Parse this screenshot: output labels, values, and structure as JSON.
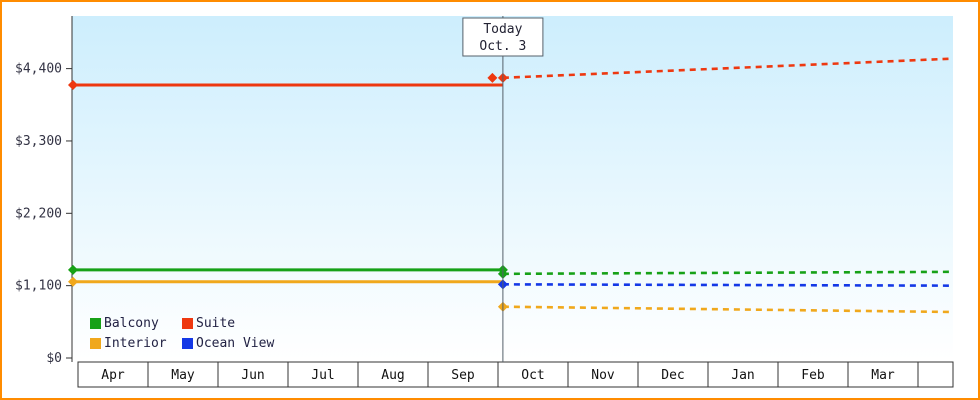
{
  "panel": {
    "border_color": "#ff8c00"
  },
  "chart_data": {
    "type": "line",
    "months": [
      "Apr",
      "May",
      "Jun",
      "Jul",
      "Aug",
      "Sep",
      "Oct",
      "Nov",
      "Dec",
      "Jan",
      "Feb",
      "Mar"
    ],
    "y_ticks": [
      {
        "value": 0,
        "label": "$0"
      },
      {
        "value": 1100,
        "label": "$1,100"
      },
      {
        "value": 2200,
        "label": "$2,200"
      },
      {
        "value": 3300,
        "label": "$3,300"
      },
      {
        "value": 4400,
        "label": "$4,400"
      }
    ],
    "ylim": [
      0,
      5200
    ],
    "grid": false,
    "legend_position": "bottom-left",
    "today": {
      "line1": "Today",
      "line2": "Oct. 3",
      "month_position": 6.07
    },
    "series": [
      {
        "name": "Balcony",
        "color": "#17a117",
        "solid": [
          [
            0,
            1340
          ],
          [
            6.07,
            1340
          ]
        ],
        "dashed": [
          [
            6.07,
            1280
          ],
          [
            12.45,
            1310
          ]
        ],
        "markers": [
          [
            0,
            1340
          ],
          [
            6.07,
            1340
          ],
          [
            6.07,
            1280
          ]
        ]
      },
      {
        "name": "Suite",
        "color": "#ee3810",
        "solid": [
          [
            0,
            4150
          ],
          [
            6.07,
            4150
          ]
        ],
        "dashed": [
          [
            6.07,
            4260
          ],
          [
            12.45,
            4550
          ]
        ],
        "markers": [
          [
            0,
            4150
          ],
          [
            5.92,
            4260
          ],
          [
            6.07,
            4260
          ]
        ]
      },
      {
        "name": "Interior",
        "color": "#f0a81c",
        "solid": [
          [
            0,
            1160
          ],
          [
            6.07,
            1160
          ]
        ],
        "dashed": [
          [
            6.07,
            780
          ],
          [
            12.45,
            700
          ]
        ],
        "markers": [
          [
            0,
            1160
          ],
          [
            6.07,
            780
          ]
        ]
      },
      {
        "name": "Ocean View",
        "color": "#1438e6",
        "solid": null,
        "dashed": [
          [
            6.07,
            1120
          ],
          [
            12.45,
            1100
          ]
        ],
        "markers": [
          [
            6.07,
            1120
          ]
        ]
      }
    ],
    "colors": {
      "plot_bg_top": "#cdeefd",
      "plot_bg_bottom": "#ffffff",
      "axis": "#333333",
      "axis_text": "#333344",
      "month_text": "#111111",
      "today_line": "#55606a",
      "today_box_bg": "#ffffff",
      "today_text": "#222233"
    }
  }
}
